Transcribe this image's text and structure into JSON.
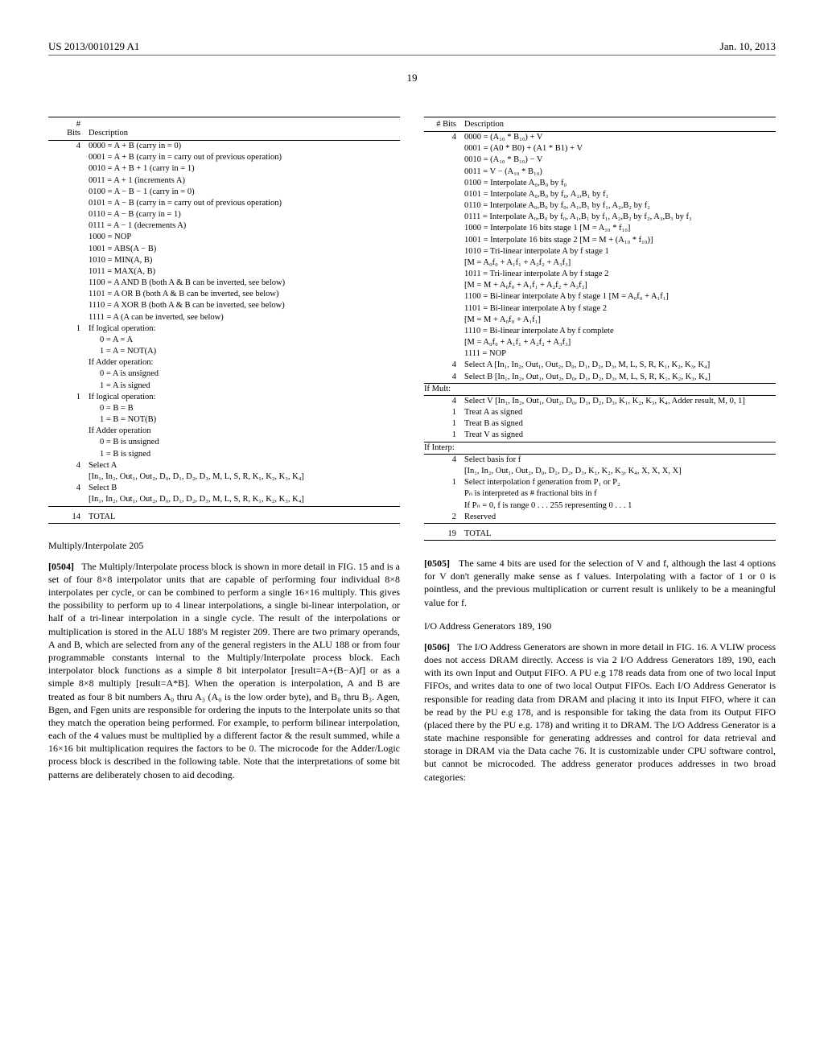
{
  "header": {
    "pub_number": "US 2013/0010129 A1",
    "date": "Jan. 10, 2013"
  },
  "page_number": "19",
  "left_table": {
    "columns": [
      "#\nBits",
      "Description"
    ],
    "rows": [
      {
        "bits": "4",
        "desc": "0000 = A + B (carry in = 0)"
      },
      {
        "bits": "",
        "desc": "0001 = A + B (carry in = carry out of previous operation)"
      },
      {
        "bits": "",
        "desc": "0010 = A + B + 1 (carry in = 1)"
      },
      {
        "bits": "",
        "desc": "0011 = A + 1 (increments A)"
      },
      {
        "bits": "",
        "desc": "0100 = A − B − 1 (carry in = 0)"
      },
      {
        "bits": "",
        "desc": "0101 = A − B (carry in = carry out of previous operation)"
      },
      {
        "bits": "",
        "desc": "0110 = A − B (carry in = 1)"
      },
      {
        "bits": "",
        "desc": "0111 = A − 1 (decrements A)"
      },
      {
        "bits": "",
        "desc": "1000 = NOP"
      },
      {
        "bits": "",
        "desc": "1001 = ABS(A − B)"
      },
      {
        "bits": "",
        "desc": "1010 = MIN(A, B)"
      },
      {
        "bits": "",
        "desc": "1011 = MAX(A, B)"
      },
      {
        "bits": "",
        "desc": "1100 = A AND B (both A & B can be inverted, see below)"
      },
      {
        "bits": "",
        "desc": "1101 = A OR B (both A & B can be inverted, see below)"
      },
      {
        "bits": "",
        "desc": "1110 = A XOR B (both A & B can be inverted, see below)"
      },
      {
        "bits": "",
        "desc": "1111 = A (A can be inverted, see below)"
      },
      {
        "bits": "1",
        "desc": "If logical operation:"
      },
      {
        "bits": "",
        "desc": "0 = A = A",
        "indent": true
      },
      {
        "bits": "",
        "desc": "1 = A = NOT(A)",
        "indent": true
      },
      {
        "bits": "",
        "desc": "If Adder operation:"
      },
      {
        "bits": "",
        "desc": "0 = A is unsigned",
        "indent": true
      },
      {
        "bits": "",
        "desc": "1 = A is signed",
        "indent": true
      },
      {
        "bits": "1",
        "desc": "If logical operation:"
      },
      {
        "bits": "",
        "desc": "0 = B = B",
        "indent": true
      },
      {
        "bits": "",
        "desc": "1 = B = NOT(B)",
        "indent": true
      },
      {
        "bits": "",
        "desc": "If Adder operation"
      },
      {
        "bits": "",
        "desc": "0 = B is unsigned",
        "indent": true
      },
      {
        "bits": "",
        "desc": "1 = B is signed",
        "indent": true
      },
      {
        "bits": "4",
        "desc": "Select A"
      },
      {
        "bits": "",
        "desc": "[In₁, In₂, Out₁, Out₂, D₀, D₁, D₂, D₃, M, L, S, R, K₁, K₂, K₃, K₄]"
      },
      {
        "bits": "4",
        "desc": "Select B"
      },
      {
        "bits": "",
        "desc": "[In₁, In₂, Out₁, Out₂, D₀, D₁, D₂, D₃, M, L, S, R, K₁, K₂, K₃, K₄]"
      }
    ],
    "total_bits": "14",
    "total_label": "TOTAL"
  },
  "section_multiply": {
    "title": "Multiply/Interpolate 205",
    "para_num": "[0504]",
    "para": "The Multiply/Interpolate process block is shown in more detail in FIG. 15 and is a set of four 8×8 interpolator units that are capable of performing four individual 8×8 interpolates per cycle, or can be combined to perform a single 16×16 multiply. This gives the possibility to perform up to 4 linear interpolations, a single bi-linear interpolation, or half of a tri-linear interpolation in a single cycle. The result of the interpolations or multiplication is stored in the ALU 188's M register 209. There are two primary operands, A and B, which are selected from any of the general registers in the ALU 188 or from four programmable constants internal to the Multiply/Interpolate process block. Each interpolator block functions as a simple 8 bit interpolator [result=A+(B−A)f] or as a simple 8×8 multiply [result=A*B]. When the operation is interpolation, A and B are treated as four 8 bit numbers A₀ thru A₃ (A₀ is the low order byte), and B₀ thru B₃. Agen, Bgen, and Fgen units are responsible for ordering the inputs to the Interpolate units so that they match the operation being performed. For example, to perform bilinear interpolation, each of the 4 values must be multiplied by a different factor & the result summed, while a 16×16 bit multiplication requires the factors to be 0. The microcode for the Adder/Logic process block is described in the following table. Note that the interpretations of some bit patterns are deliberately chosen to aid decoding."
  },
  "right_table": {
    "columns": [
      "# Bits",
      "Description"
    ],
    "rows": [
      {
        "bits": "4",
        "desc": "0000 = (A₁₀ * B₁₀) + V"
      },
      {
        "bits": "",
        "desc": "0001 = (A0 * B0) + (A1 * B1) + V"
      },
      {
        "bits": "",
        "desc": "0010 = (A₁₀ * B₁₀) − V"
      },
      {
        "bits": "",
        "desc": "0011 = V − (A₁₀ * B₁₀)"
      },
      {
        "bits": "",
        "desc": "0100 = Interpolate A₀,B₀ by f₀"
      },
      {
        "bits": "",
        "desc": "0101 = Interpolate A₀,B₀ by f₀, A₁,B₁ by f₁"
      },
      {
        "bits": "",
        "desc": "0110 = Interpolate A₀,B₀ by f₀, A₁,B₁ by f₁, A₂,B₂ by f₂"
      },
      {
        "bits": "",
        "desc": "0111 = Interpolate A₀,B₀ by f₀, A₁,B₁ by f₁, A₂,B₂ by f₂, A₃,B₃ by f₃"
      },
      {
        "bits": "",
        "desc": "1000 = Interpolate 16 bits stage 1 [M = A₁₀ * f₁₀]"
      },
      {
        "bits": "",
        "desc": "1001 = Interpolate 16 bits stage 2 [M = M + (A₁₀ * f₁₀)]"
      },
      {
        "bits": "",
        "desc": "1010 = Tri-linear interpolate A by f stage 1"
      },
      {
        "bits": "",
        "desc": "[M = A₀f₀ + A₁f₁ + A₂f₂ + A₃f₃]"
      },
      {
        "bits": "",
        "desc": "1011 = Tri-linear interpolate A by f stage 2"
      },
      {
        "bits": "",
        "desc": "[M = M + A₀f₀ + A₁f₁ + A₂f₂ + A₃f₃]"
      },
      {
        "bits": "",
        "desc": "1100 = Bi-linear interpolate A by f stage 1 [M = A₀f₀ + A₁f₁]"
      },
      {
        "bits": "",
        "desc": "1101 = Bi-linear interpolate A by f stage 2"
      },
      {
        "bits": "",
        "desc": "[M = M + A₀f₀ + A₁f₁]"
      },
      {
        "bits": "",
        "desc": "1110 = Bi-linear interpolate A by f complete"
      },
      {
        "bits": "",
        "desc": "[M = A₀f₀ + A₁f₁ + A₂f₂ + A₃f₃]"
      },
      {
        "bits": "",
        "desc": "1111 = NOP"
      },
      {
        "bits": "4",
        "desc": "Select A [In₁, In₂, Out₁, Out₂, D₀, D₁, D₂, D₃, M, L, S, R, K₁, K₂, K₃, K₄]"
      },
      {
        "bits": "4",
        "desc": "Select B [In₁, In₂, Out₁, Out₂, D₀, D₁, D₂, D₃, M, L, S, R, K₁, K₂, K₃, K₄]"
      },
      {
        "bits": "If Mult:",
        "desc": "",
        "section": true
      },
      {
        "bits": "4",
        "desc": "Select V [In₁, In₂, Out₁, Out₂, D₀, D₁, D₂, D₃, K₁, K₂, K₃, K₄, Adder result, M, 0, 1]"
      },
      {
        "bits": "1",
        "desc": "Treat A as signed"
      },
      {
        "bits": "1",
        "desc": "Treat B as signed"
      },
      {
        "bits": "1",
        "desc": "Treat V as signed"
      },
      {
        "bits": "If Interp:",
        "desc": "",
        "section": true
      },
      {
        "bits": "4",
        "desc": "Select basis for f"
      },
      {
        "bits": "",
        "desc": "[In₁, In₂, Out₁, Out₂, D₀, D₁, D₂, D₃, K₁, K₂, K₃, K₄, X, X, X, X]"
      },
      {
        "bits": "1",
        "desc": "Select interpolation f generation from P₁ or P₂"
      },
      {
        "bits": "",
        "desc": "Pₙ is interpreted as # fractional bits in f"
      },
      {
        "bits": "",
        "desc": "If Pₙ = 0, f is range 0 . . . 255 representing 0 . . . 1"
      },
      {
        "bits": "2",
        "desc": "Reserved"
      }
    ],
    "total_bits": "19",
    "total_label": "TOTAL"
  },
  "para_0505": {
    "num": "[0505]",
    "text": "The same 4 bits are used for the selection of V and f, although the last 4 options for V don't generally make sense as f values. Interpolating with a factor of 1 or 0 is pointless, and the previous multiplication or current result is unlikely to be a meaningful value for f."
  },
  "section_io": {
    "title": "I/O Address Generators 189, 190",
    "para_num": "[0506]",
    "para": "The I/O Address Generators are shown in more detail in FIG. 16. A VLIW process does not access DRAM directly. Access is via 2 I/O Address Generators 189, 190, each with its own Input and Output FIFO. A PU e.g 178 reads data from one of two local Input FIFOs, and writes data to one of two local Output FIFOs. Each I/O Address Generator is responsible for reading data from DRAM and placing it into its Input FIFO, where it can be read by the PU e.g 178, and is responsible for taking the data from its Output FIFO (placed there by the PU e.g. 178) and writing it to DRAM. The I/O Address Generator is a state machine responsible for generating addresses and control for data retrieval and storage in DRAM via the Data cache 76. It is customizable under CPU software control, but cannot be microcoded. The address generator produces addresses in two broad categories:"
  }
}
